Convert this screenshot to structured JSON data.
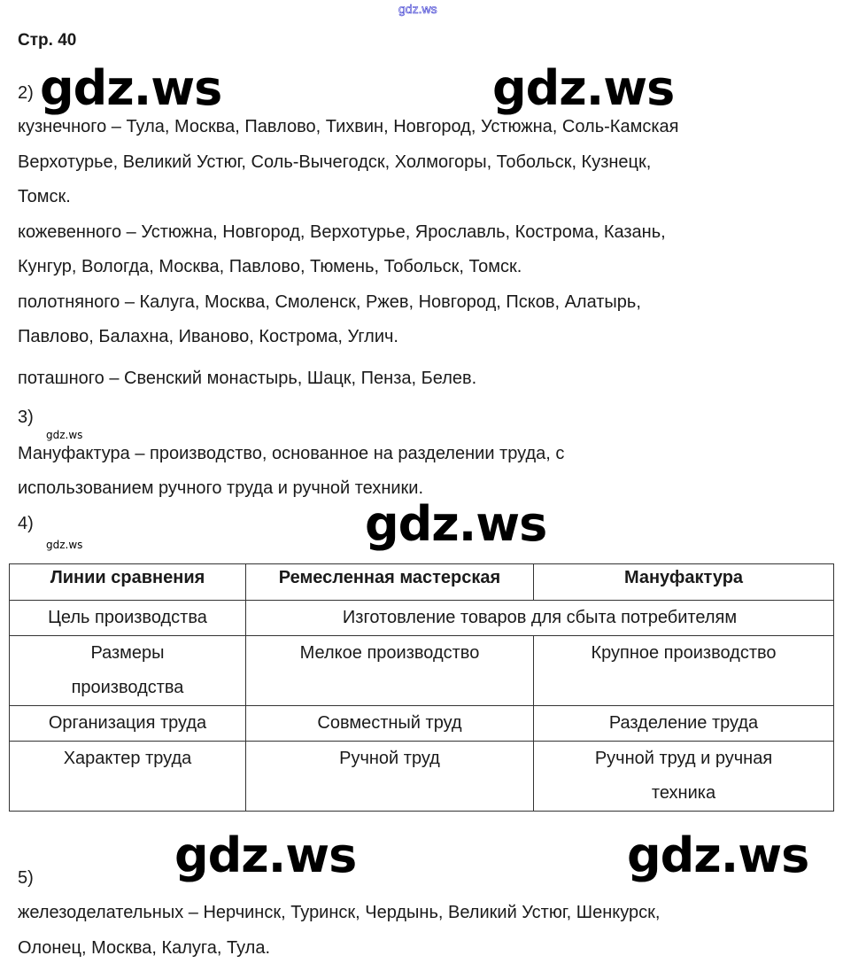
{
  "watermark": {
    "small": "gdz.ws",
    "big": "gdz.ws",
    "top": "gdz.ws"
  },
  "page": "Стр. 40",
  "task2": {
    "num": "2)",
    "lines": [
      "кузнечного – Тула, Москва, Павлово, Тихвин, Новгород, Устюжна, Соль-Камская",
      "Верхотурье, Великий Устюг, Соль-Вычегодск, Холмогоры, Тобольск, Кузнецк,",
      "Томск.",
      "кожевенного – Устюжна, Новгород, Верхотурье, Ярославль, Кострома, Казань,",
      "Кунгур, Вологда, Москва, Павлово, Тюмень, Тобольск, Томск.",
      "полотняного – Калуга, Москва, Смоленск, Ржев, Новгород, Псков, Алатырь,",
      "Павлово, Балахна, Иваново, Кострома, Углич.",
      "поташного – Свенский монастырь, Шацк, Пенза, Белев."
    ]
  },
  "task3": {
    "num": "3)",
    "lines": [
      "Мануфактура – производство, основанное на разделении труда, с",
      "использованием ручного труда и ручной техники."
    ]
  },
  "task4": {
    "num": "4)",
    "headers": [
      "Линии сравнения",
      "Ремесленная мастерская",
      "Мануфактура"
    ],
    "rows": [
      {
        "label": "Цель производства",
        "merged": "Изготовление товаров для сбыта потребителям"
      },
      {
        "label": "Размеры производства",
        "a": "Мелкое производство",
        "b": "Крупное производство"
      },
      {
        "label": "Организация труда",
        "a": "Совместный труд",
        "b": "Разделение труда"
      },
      {
        "label": "Характер труда",
        "a": "Ручной труд",
        "b": "Ручной труд и ручная техника"
      }
    ]
  },
  "task5": {
    "num": "5)",
    "lines": [
      "железоделательных – Нерчинск, Туринск, Чердынь, Великий Устюг, Шенкурск,",
      "Олонец, Москва, Калуга, Тула."
    ]
  }
}
